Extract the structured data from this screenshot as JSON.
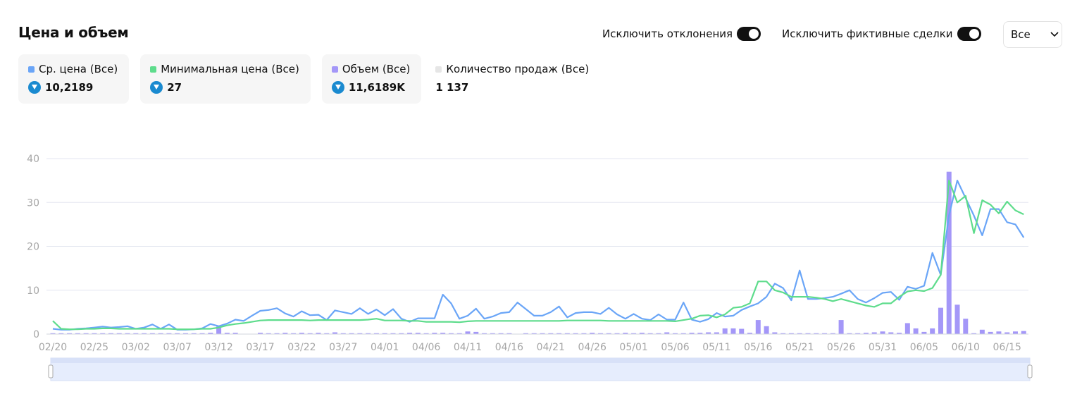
{
  "title": "Цена и объем",
  "controls": {
    "toggles": [
      "Исключить отклонения",
      "Исключить фиктивные сделки"
    ],
    "select": "Все"
  },
  "summary": [
    {
      "value": "10,2189"
    },
    {
      "value": "27"
    },
    {
      "value": "11,6189K"
    },
    {
      "label": "Количество продаж (Все)",
      "color": "#e6e6e6",
      "value": "1 137"
    }
  ],
  "chart_data": {
    "type": "line",
    "grid": true,
    "ylim": [
      0,
      40
    ],
    "yticks": [
      0,
      10,
      20,
      30,
      40
    ],
    "categories": [
      "02/20",
      null,
      null,
      null,
      null,
      "02/25",
      null,
      null,
      null,
      null,
      "03/02",
      null,
      null,
      null,
      null,
      "03/07",
      null,
      null,
      null,
      null,
      "03/12",
      null,
      null,
      null,
      null,
      "03/17",
      null,
      null,
      null,
      null,
      "03/22",
      null,
      null,
      null,
      null,
      "03/27",
      null,
      null,
      null,
      null,
      "04/01",
      null,
      null,
      null,
      null,
      "04/06",
      null,
      null,
      null,
      null,
      "04/11",
      null,
      null,
      null,
      null,
      "04/16",
      null,
      null,
      null,
      null,
      "04/21",
      null,
      null,
      null,
      null,
      "04/26",
      null,
      null,
      null,
      null,
      "05/01",
      null,
      null,
      null,
      null,
      "05/06",
      null,
      null,
      null,
      null,
      "05/11",
      null,
      null,
      null,
      null,
      "05/16",
      null,
      null,
      null,
      null,
      "05/21",
      null,
      null,
      null,
      null,
      "05/26",
      null,
      null,
      null,
      null,
      "05/31",
      null,
      null,
      null,
      null,
      "06/05",
      null,
      null,
      null,
      null,
      "06/10",
      null,
      null,
      null,
      null,
      "06/15",
      null,
      null
    ],
    "series": [
      {
        "name": "Ср. цена (Все)",
        "type": "line",
        "color": "#6aa5f7",
        "values": [
          1.2,
          1.0,
          1.0,
          1.2,
          1.3,
          1.5,
          1.7,
          1.5,
          1.6,
          1.8,
          1.2,
          1.5,
          2.2,
          1.2,
          2.2,
          1.0,
          1.0,
          1.1,
          1.3,
          2.3,
          1.8,
          2.4,
          3.3,
          3.0,
          4.2,
          5.3,
          5.5,
          5.9,
          4.7,
          4.0,
          5.2,
          4.3,
          4.4,
          3.2,
          5.4,
          5.0,
          4.6,
          5.9,
          4.6,
          5.6,
          4.3,
          5.7,
          3.5,
          2.8,
          3.6,
          3.6,
          3.6,
          9.0,
          7.0,
          3.5,
          4.2,
          5.8,
          3.5,
          4.0,
          4.8,
          5.0,
          7.2,
          5.7,
          4.2,
          4.2,
          5.0,
          6.3,
          3.8,
          4.8,
          5.0,
          5.0,
          4.6,
          6.0,
          4.5,
          3.5,
          4.6,
          3.5,
          3.2,
          4.5,
          3.3,
          3.3,
          7.2,
          3.3,
          2.8,
          3.4,
          4.8,
          4.0,
          4.2,
          5.5,
          6.3,
          7.0,
          8.5,
          11.5,
          10.5,
          7.7,
          14.5,
          8.0,
          8.0,
          8.2,
          8.5,
          9.2,
          10.0,
          8.0,
          7.2,
          8.2,
          9.4,
          9.6,
          7.8,
          10.8,
          10.3,
          11.0,
          18.5,
          13.5,
          27.0,
          35.0,
          31.0,
          27.0,
          22.5,
          28.5,
          28.5,
          25.5,
          25.0,
          22.0
        ]
      },
      {
        "name": "Минимальная цена (Все)",
        "type": "line",
        "color": "#5edc8c",
        "values": [
          3.0,
          1.2,
          1.1,
          1.1,
          1.2,
          1.2,
          1.3,
          1.3,
          1.2,
          1.2,
          1.2,
          1.2,
          1.2,
          1.2,
          1.2,
          1.1,
          1.1,
          1.1,
          1.2,
          1.2,
          1.5,
          2.0,
          2.3,
          2.5,
          2.8,
          3.1,
          3.2,
          3.2,
          3.2,
          3.2,
          3.2,
          3.1,
          3.2,
          3.2,
          3.2,
          3.2,
          3.2,
          3.2,
          3.3,
          3.5,
          3.1,
          3.1,
          3.1,
          3.0,
          3.0,
          2.8,
          2.8,
          2.8,
          2.8,
          2.7,
          2.9,
          3.0,
          3.0,
          3.0,
          3.0,
          3.0,
          3.0,
          3.0,
          3.0,
          3.0,
          3.0,
          3.0,
          3.1,
          3.1,
          3.1,
          3.1,
          3.1,
          3.0,
          3.0,
          3.0,
          3.0,
          3.0,
          3.0,
          3.0,
          3.0,
          2.9,
          3.2,
          3.5,
          4.2,
          4.3,
          3.8,
          4.5,
          6.0,
          6.2,
          7.0,
          12.0,
          12.0,
          10.0,
          9.5,
          8.5,
          8.5,
          8.5,
          8.3,
          8.0,
          7.5,
          8.0,
          7.5,
          7.0,
          6.5,
          6.2,
          7.0,
          7.0,
          8.5,
          9.7,
          10.0,
          9.8,
          10.5,
          13.5,
          35.0,
          30.0,
          31.5,
          23.0,
          30.5,
          29.5,
          27.5,
          30.2,
          28.2,
          27.3
        ]
      },
      {
        "name": "Объем (Все)",
        "type": "bar",
        "color": "#a497f8",
        "values": [
          0.2,
          0.2,
          0.2,
          0.2,
          0.2,
          0.2,
          0.2,
          0.2,
          0.2,
          0.2,
          0.2,
          0.2,
          0.2,
          0.2,
          0.2,
          0.2,
          0.2,
          0.2,
          0.2,
          0.3,
          1.8,
          0.3,
          0.3,
          0,
          0,
          0.3,
          0.2,
          0.2,
          0.3,
          0.2,
          0.3,
          0.2,
          0.3,
          0.2,
          0.4,
          0.2,
          0.2,
          0.2,
          0.2,
          0.2,
          0.2,
          0.2,
          0.2,
          0.3,
          0.3,
          0.2,
          0.3,
          0.3,
          0.2,
          0.2,
          0.6,
          0.5,
          0.2,
          0.2,
          0.2,
          0.2,
          0,
          0.2,
          0.2,
          0.2,
          0.2,
          0.2,
          0.2,
          0.2,
          0.2,
          0.3,
          0.2,
          0.2,
          0.2,
          0.3,
          0.2,
          0.3,
          0.2,
          0.2,
          0.4,
          0.2,
          0.2,
          0.3,
          0.3,
          0.4,
          0.4,
          1.3,
          1.3,
          1.2,
          0.3,
          3.2,
          1.8,
          0.4,
          0.2,
          0.2,
          0.2,
          0.2,
          0.2,
          0.2,
          0.2,
          3.2,
          0.2,
          0.2,
          0.3,
          0.4,
          0.6,
          0.4,
          0.3,
          2.5,
          1.3,
          0.5,
          1.3,
          6.0,
          37.0,
          6.7,
          3.5,
          0.2,
          1.0,
          0.5,
          0.6,
          0.4,
          0.6,
          0.7
        ]
      }
    ]
  }
}
